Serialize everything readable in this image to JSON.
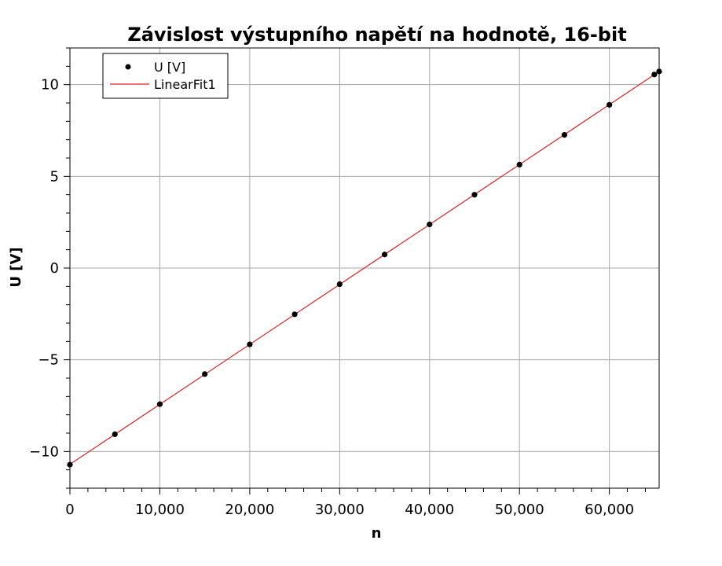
{
  "chart_data": {
    "type": "scatter",
    "title": "Závislost výstupního napětí na hodnotě, 16-bit",
    "xlabel": "n",
    "ylabel": "U [V]",
    "xlim": [
      0,
      65535
    ],
    "ylim": [
      -12,
      12
    ],
    "grid": true,
    "legend_position": "top-left",
    "x_ticks": [
      {
        "value": 0,
        "label": "0"
      },
      {
        "value": 10000,
        "label": "10,000"
      },
      {
        "value": 20000,
        "label": "20,000"
      },
      {
        "value": 30000,
        "label": "30,000"
      },
      {
        "value": 40000,
        "label": "40,000"
      },
      {
        "value": 50000,
        "label": "50,000"
      },
      {
        "value": 60000,
        "label": "60,000"
      }
    ],
    "y_ticks": [
      {
        "value": 10,
        "label": "10"
      },
      {
        "value": 5,
        "label": "5"
      },
      {
        "value": 0,
        "label": "0"
      },
      {
        "value": -5,
        "label": "−5"
      },
      {
        "value": -10,
        "label": "−10"
      }
    ],
    "series": [
      {
        "name": "U [V]",
        "kind": "points",
        "color": "#000000",
        "x": [
          0,
          5000,
          10000,
          15000,
          20000,
          25000,
          30000,
          35000,
          40000,
          45000,
          50000,
          55000,
          60000,
          65000,
          65535
        ],
        "y": [
          -10.72,
          -9.06,
          -7.42,
          -5.78,
          -4.16,
          -2.52,
          -0.88,
          0.74,
          2.38,
          4.0,
          5.64,
          7.26,
          8.9,
          10.55,
          10.72
        ]
      },
      {
        "name": "LinearFit1",
        "kind": "line",
        "color": "#e02020",
        "x": [
          0,
          65535
        ],
        "y": [
          -10.7,
          10.72
        ]
      }
    ]
  }
}
